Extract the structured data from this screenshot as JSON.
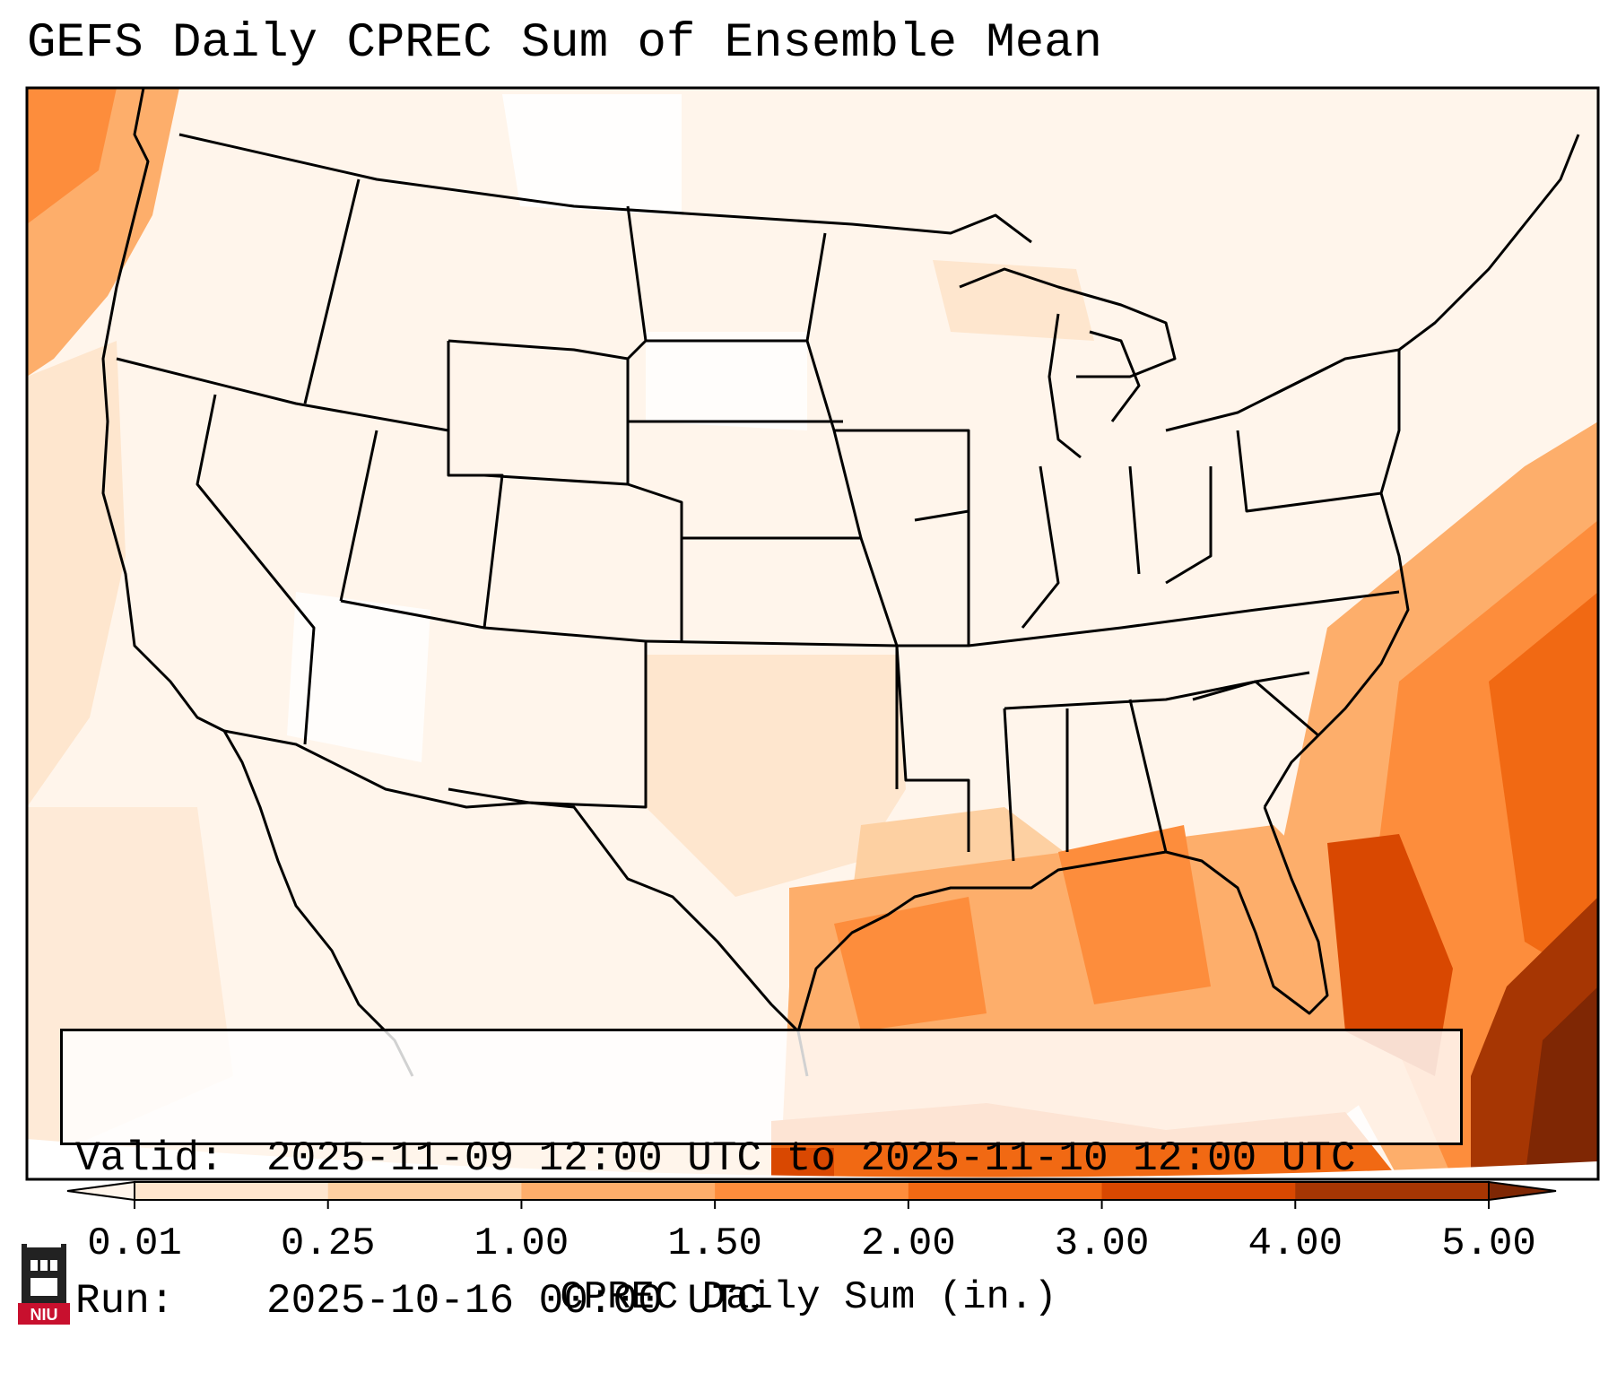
{
  "title": "GEFS Daily CPREC Sum of Ensemble Mean",
  "info": {
    "valid_label": "Valid:",
    "valid_value": "2025-11-09 12:00 UTC to 2025-11-10 12:00 UTC",
    "run_label": "Run:",
    "run_value": "2025-10-16 00:00 UTC"
  },
  "colorbar": {
    "title": "CPREC Daily Sum (in.)",
    "ticks": [
      "0.01",
      "0.25",
      "1.00",
      "1.50",
      "2.00",
      "3.00",
      "4.00",
      "5.00"
    ],
    "colors": [
      "#fff5eb",
      "#fee6ce",
      "#fdd0a2",
      "#fdae6b",
      "#fd8d3c",
      "#f16913",
      "#d94801",
      "#a63603",
      "#7f2704"
    ],
    "extend": "both"
  },
  "logo": {
    "text": "NIU",
    "color": "#c8102e"
  }
}
